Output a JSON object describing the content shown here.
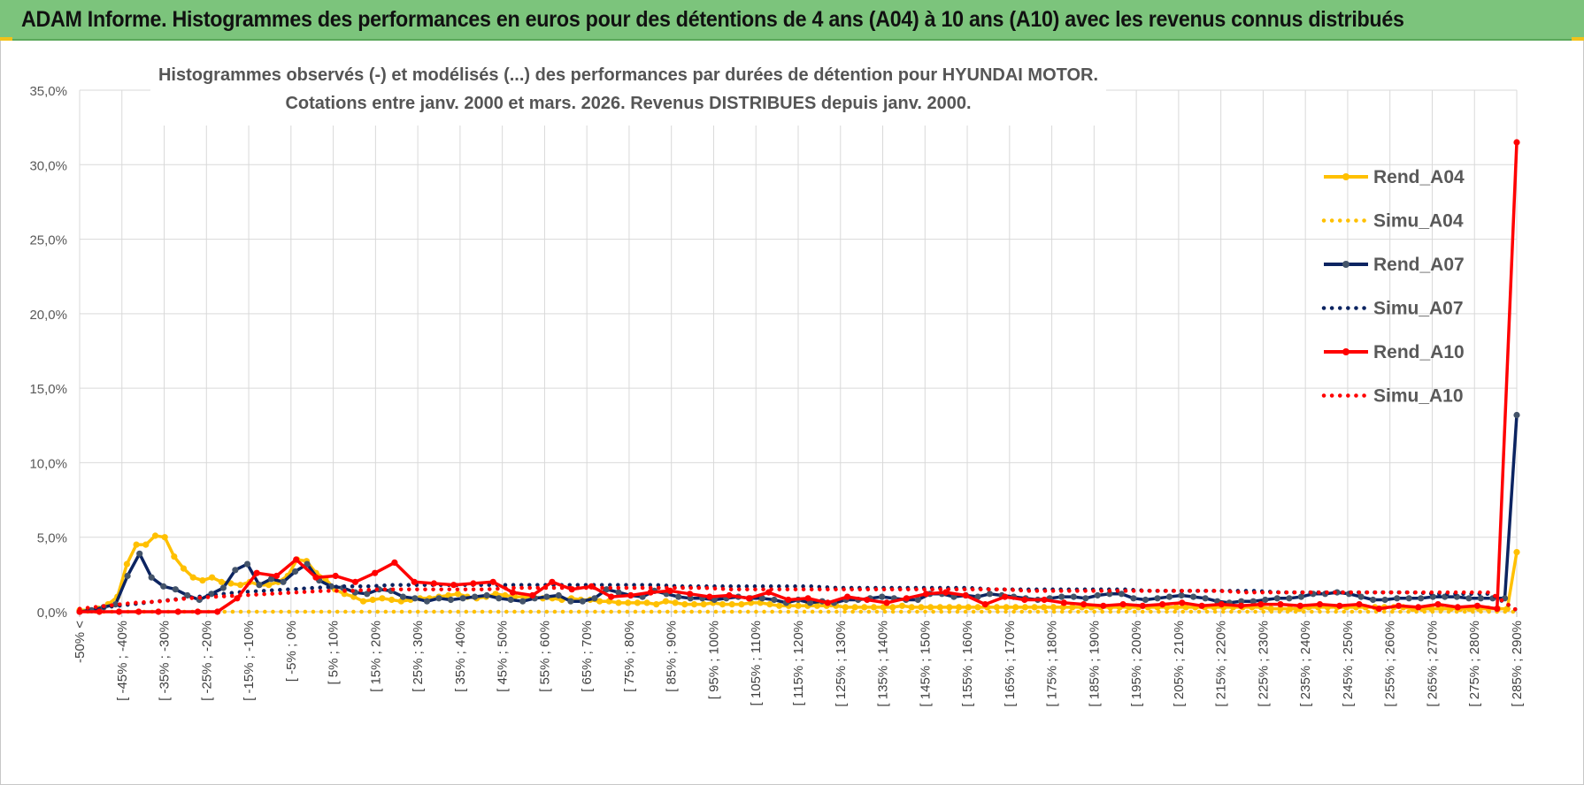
{
  "header": {
    "title": "ADAM Informe. Histogrammes des performances en euros pour des détentions de 4 ans (A04) à 10 ans (A10) avec les revenus connus distribués"
  },
  "colors": {
    "header_bg": "#7cc47c",
    "A04": "#ffc000",
    "A07": "#0c2461",
    "A10": "#ff0000",
    "grid": "#d9d9d9"
  },
  "chart_data": {
    "type": "line",
    "title_line1": "Histogrammes observés (-) et modélisés (...) des performances par durées de détention pour HYUNDAI MOTOR.",
    "title_line2": "Cotations entre janv. 2000 et mars. 2026. Revenus DISTRIBUES depuis janv. 2000.",
    "xlabel": "",
    "ylabel": "",
    "ylim": [
      0,
      35
    ],
    "y_ticks": [
      "0,0%",
      "5,0%",
      "10,0%",
      "15,0%",
      "20,0%",
      "25,0%",
      "30,0%",
      "35,0%"
    ],
    "grid": true,
    "legend_position": "right",
    "category_labels": [
      "-50% <",
      "[ -45% ; -40%",
      "[ -35% ; -30%",
      "[ -25% ; -20%",
      "[ -15% ; -10%",
      "[ -5% ; 0%",
      "[ 5% ; 10%",
      "[ 15% ; 20%",
      "[ 25% ; 30%",
      "[ 35% ; 40%",
      "[ 45% ; 50%",
      "[ 55% ; 60%",
      "[ 65% ; 70%",
      "[ 75% ; 80%",
      "[ 85% ; 90%",
      "[ 95% ; 100%",
      "[ 105% ; 110%",
      "[ 115% ; 120%",
      "[ 125% ; 130%",
      "[ 135% ; 140%",
      "[ 145% ; 150%",
      "[ 155% ; 160%",
      "[ 165% ; 170%",
      "[ 175% ; 180%",
      "[ 185% ; 190%",
      "[ 195% ; 200%",
      "[ 205% ; 210%",
      "[ 215% ; 220%",
      "[ 225% ; 230%",
      "[ 235% ; 240%",
      "[ 245% ; 250%",
      "[ 255% ; 260%",
      "[ 265% ; 270%",
      "[ 275% ; 280%",
      "[ 285% ; 290%"
    ],
    "series": [
      {
        "name": "Rend_A04",
        "style": "solid",
        "color": "#ffc000",
        "values": [
          0.1,
          0.1,
          0.2,
          0.5,
          1.0,
          3.2,
          4.5,
          4.5,
          5.1,
          5.0,
          3.7,
          2.9,
          2.3,
          2.1,
          2.3,
          2.0,
          1.9,
          1.8,
          2.0,
          1.8,
          1.8,
          2.0,
          2.4,
          3.5,
          3.4,
          2.6,
          2.2,
          1.5,
          1.2,
          1.0,
          0.7,
          0.8,
          0.9,
          0.8,
          0.7,
          0.8,
          0.9,
          0.9,
          1.0,
          1.1,
          1.2,
          1.0,
          0.9,
          1.0,
          1.2,
          1.1,
          1.0,
          1.0,
          1.0,
          0.9,
          0.9,
          0.8,
          0.9,
          0.8,
          0.8,
          0.7,
          0.7,
          0.6,
          0.6,
          0.6,
          0.6,
          0.5,
          0.7,
          0.6,
          0.5,
          0.5,
          0.5,
          0.6,
          0.5,
          0.5,
          0.5,
          0.6,
          0.6,
          0.5,
          0.4,
          0.4,
          0.4,
          0.4,
          0.4,
          0.4,
          0.4,
          0.3,
          0.3,
          0.3,
          0.3,
          0.3,
          0.3,
          0.4,
          0.3,
          0.3,
          0.3,
          0.3,
          0.3,
          0.3,
          0.3,
          0.3,
          0.3,
          0.3,
          0.3,
          0.3,
          0.3,
          0.3,
          0.3,
          0.3,
          0.3,
          0.3,
          0.3,
          0.3,
          0.3,
          0.3,
          0.3,
          0.3,
          0.3,
          0.3,
          0.3,
          0.3,
          0.3,
          0.3,
          0.3,
          0.3,
          0.3,
          0.3,
          0.3,
          0.3,
          0.3,
          0.3,
          0.2,
          0.2,
          0.2,
          0.2,
          0.3,
          0.3,
          0.3,
          0.3,
          0.3,
          0.3,
          0.3,
          0.3,
          0.3,
          0.3,
          0.3,
          0.2,
          0.2,
          0.2,
          0.2,
          0.2,
          0.2,
          0.2,
          0.2,
          0.2,
          0.2,
          0.2,
          4.0
        ]
      },
      {
        "name": "Simu_A04",
        "style": "dotted",
        "color": "#ffc000",
        "values": [
          0.0,
          0.0,
          0.0,
          0.0,
          0.0,
          0.0,
          0.0,
          0.0,
          0.0,
          0.0,
          0.0,
          0.0,
          0.0,
          0.0,
          0.0,
          0.0,
          0.0,
          0.0,
          0.0,
          0.0,
          0.0,
          0.0,
          0.0,
          0.0,
          0.0,
          0.0,
          0.0,
          0.0,
          0.0,
          0.0,
          0.0,
          0.0,
          0.0,
          0.0,
          0.0,
          0.0,
          0.0,
          0.0,
          0.0,
          0.0,
          0.0,
          0.0,
          0.0,
          0.0,
          0.0,
          0.0,
          0.0,
          0.0,
          0.0,
          0.0,
          0.0,
          0.0,
          0.0,
          0.0,
          0.0,
          0.0,
          0.0,
          0.0,
          0.0,
          0.0,
          0.0,
          0.0,
          0.0,
          0.0,
          0.0,
          0.0,
          0.0,
          0.0,
          0.0,
          0.0
        ]
      },
      {
        "name": "Rend_A07",
        "style": "solid",
        "color": "#0c2461",
        "values": [
          0.0,
          0.1,
          0.3,
          0.5,
          2.4,
          3.9,
          2.3,
          1.7,
          1.5,
          1.1,
          0.8,
          1.2,
          1.6,
          2.8,
          3.2,
          1.8,
          2.2,
          2.0,
          2.7,
          3.2,
          2.1,
          1.7,
          1.6,
          1.3,
          1.2,
          1.5,
          1.4,
          1.0,
          0.9,
          0.7,
          0.9,
          0.8,
          0.9,
          1.0,
          1.1,
          0.9,
          0.8,
          0.7,
          0.9,
          1.0,
          1.1,
          0.7,
          0.7,
          0.9,
          1.5,
          1.3,
          1.1,
          1.0,
          1.4,
          1.2,
          1.0,
          0.9,
          0.9,
          0.8,
          0.9,
          1.0,
          0.9,
          0.9,
          0.8,
          0.6,
          0.8,
          0.6,
          0.7,
          0.6,
          0.8,
          0.8,
          0.9,
          1.0,
          0.9,
          0.8,
          0.8,
          1.2,
          1.2,
          1.0,
          1.1,
          1.0,
          1.2,
          1.1,
          1.0,
          0.9,
          0.8,
          0.9,
          1.0,
          1.0,
          0.9,
          1.1,
          1.2,
          1.2,
          0.9,
          0.8,
          0.9,
          1.0,
          1.1,
          1.0,
          0.9,
          0.7,
          0.6,
          0.7,
          0.7,
          0.8,
          0.9,
          0.9,
          1.0,
          1.2,
          1.2,
          1.3,
          1.2,
          1.0,
          0.8,
          0.8,
          0.9,
          0.9,
          0.9,
          1.0,
          1.0,
          1.0,
          0.9,
          0.9,
          0.9,
          0.9,
          13.2
        ]
      },
      {
        "name": "Simu_A07",
        "style": "dotted",
        "color": "#0c2461",
        "values": [
          0.1,
          0.3,
          0.5,
          0.7,
          0.9,
          1.1,
          1.3,
          1.4,
          1.5,
          1.6,
          1.7,
          1.7,
          1.8,
          1.8,
          1.8,
          1.8,
          1.8,
          1.8,
          1.8,
          1.8,
          1.8,
          1.8,
          1.8,
          1.7,
          1.7,
          1.7,
          1.7,
          1.7,
          1.7,
          1.6,
          1.6,
          1.6,
          1.6,
          1.6,
          1.6,
          1.5,
          1.5,
          1.5,
          1.5,
          1.5,
          1.5,
          1.4,
          1.4,
          1.4,
          1.4,
          1.4,
          1.3,
          1.3,
          1.3,
          1.3,
          1.3,
          1.3,
          1.2,
          1.2,
          1.2,
          0.1
        ]
      },
      {
        "name": "Rend_A10",
        "style": "solid",
        "color": "#ff0000",
        "values": [
          0.0,
          0.0,
          0.0,
          0.0,
          0.0,
          0.0,
          0.0,
          0.0,
          0.9,
          2.6,
          2.4,
          3.5,
          2.3,
          2.4,
          2.0,
          2.6,
          3.3,
          2.0,
          1.9,
          1.8,
          1.9,
          2.0,
          1.3,
          1.1,
          2.0,
          1.5,
          1.7,
          1.0,
          1.1,
          1.3,
          1.4,
          1.2,
          1.0,
          1.1,
          0.9,
          1.3,
          0.8,
          0.9,
          0.6,
          1.0,
          0.8,
          0.6,
          0.9,
          1.2,
          1.3,
          1.1,
          0.5,
          1.0,
          0.8,
          0.8,
          0.6,
          0.5,
          0.4,
          0.5,
          0.4,
          0.5,
          0.6,
          0.4,
          0.5,
          0.4,
          0.5,
          0.5,
          0.4,
          0.5,
          0.4,
          0.5,
          0.2,
          0.4,
          0.3,
          0.5,
          0.3,
          0.4,
          0.2,
          31.5
        ]
      },
      {
        "name": "Simu_A10",
        "style": "dotted",
        "color": "#ff0000",
        "values": [
          0.2,
          0.4,
          0.6,
          0.7,
          0.9,
          1.0,
          1.1,
          1.2,
          1.3,
          1.4,
          1.4,
          1.5,
          1.5,
          1.5,
          1.5,
          1.5,
          1.6,
          1.6,
          1.6,
          1.6,
          1.6,
          1.6,
          1.6,
          1.6,
          1.5,
          1.5,
          1.5,
          1.5,
          1.5,
          1.5,
          1.5,
          1.5,
          1.5,
          1.5,
          1.5,
          1.4,
          1.4,
          1.4,
          1.4,
          1.4,
          1.4,
          1.4,
          1.4,
          1.3,
          1.3,
          1.3,
          1.3,
          1.3,
          1.3,
          1.3,
          1.3,
          1.3,
          1.3,
          0.1
        ]
      }
    ]
  }
}
